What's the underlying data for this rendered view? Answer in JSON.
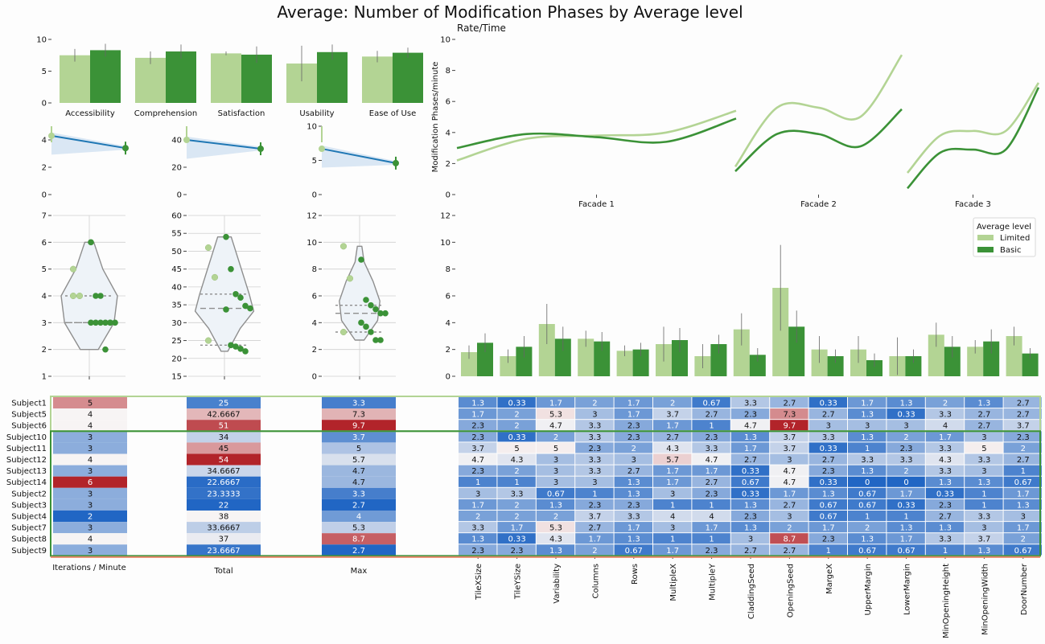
{
  "title": "Average: Number of Modification Phases by Average level",
  "colors": {
    "limited": "#b3d494",
    "basic": "#3b9237"
  },
  "chart_data": [
    {
      "id": "ratings_bar",
      "type": "bar",
      "categories": [
        "Accessibility",
        "Comprehension",
        "Satisfaction",
        "Usability",
        "Ease of Use"
      ],
      "series": [
        {
          "name": "Limited",
          "values": [
            7.5,
            7.1,
            7.8,
            6.2,
            7.3
          ],
          "err": [
            1.0,
            1.0,
            0.3,
            2.8,
            0.9
          ]
        },
        {
          "name": "Basic",
          "values": [
            8.3,
            8.1,
            7.6,
            8.0,
            7.9
          ],
          "err": [
            1.0,
            1.1,
            1.3,
            1.2,
            0.8
          ]
        }
      ],
      "ylim": [
        0,
        10
      ],
      "yticks": [
        "0",
        "5",
        "10"
      ]
    },
    {
      "id": "regression_panels",
      "type": "line",
      "panels": [
        {
          "y": [
            4.3,
            3.4
          ],
          "ylim": [
            0,
            5
          ],
          "yticks": [
            "0",
            "2",
            "4"
          ]
        },
        {
          "y": [
            40.0,
            33.5
          ],
          "ylim": [
            0,
            50
          ],
          "yticks": [
            "0",
            "20",
            "40"
          ]
        },
        {
          "y": [
            6.7,
            4.6
          ],
          "ylim": [
            0,
            10
          ],
          "yticks": [
            "0",
            "5",
            "10"
          ]
        }
      ]
    },
    {
      "id": "violin_panels",
      "type": "scatter",
      "panels": [
        {
          "ylim": [
            1,
            7
          ],
          "yticks": [
            "1",
            "2",
            "3",
            "4",
            "5",
            "6",
            "7"
          ],
          "limited": [
            5,
            4,
            4
          ],
          "basic": [
            6,
            4,
            4,
            3,
            3,
            3,
            3,
            3,
            3,
            2,
            3
          ]
        },
        {
          "ylim": [
            15,
            60
          ],
          "yticks": [
            "15",
            "20",
            "25",
            "30",
            "35",
            "40",
            "45",
            "50",
            "55",
            "60"
          ],
          "limited": [
            51,
            42.7,
            25
          ],
          "basic": [
            54,
            45,
            38,
            37,
            34.7,
            34,
            33.7,
            23.7,
            23.3,
            22.7,
            22
          ]
        },
        {
          "ylim": [
            0,
            12
          ],
          "yticks": [
            "0",
            "2",
            "4",
            "6",
            "8",
            "10",
            "12"
          ],
          "limited": [
            9.7,
            7.3,
            3.3
          ],
          "basic": [
            8.7,
            5.7,
            5.3,
            5,
            4.7,
            4.7,
            4,
            3.7,
            3.3,
            2.7,
            2.7
          ]
        }
      ]
    },
    {
      "id": "rate_time",
      "type": "line",
      "title": "Rate/Time",
      "ylabel": "Modification Phases/minute",
      "categories": [
        "Facade 1",
        "Facade 2",
        "Facade 3"
      ],
      "ylim": [
        0,
        10
      ],
      "yticks": [
        "0",
        "2",
        "4",
        "6",
        "8",
        "10"
      ],
      "series": [
        {
          "name": "Limited",
          "curves": [
            [
              2.2,
              3.6,
              3.8,
              4.0,
              5.4
            ],
            [
              1.8,
              5.6,
              5.6,
              5.0,
              9.0
            ],
            [
              1.4,
              3.8,
              4.1,
              4.1,
              7.2
            ]
          ]
        },
        {
          "name": "Basic",
          "curves": [
            [
              3.0,
              3.9,
              3.7,
              3.4,
              4.9
            ],
            [
              1.5,
              3.9,
              3.9,
              3.1,
              5.5
            ],
            [
              0.4,
              2.7,
              2.9,
              2.9,
              6.9
            ]
          ]
        }
      ]
    },
    {
      "id": "params_bar",
      "type": "bar",
      "categories": [
        "TileXSize",
        "TileYSize",
        "Variability",
        "Columns",
        "Rows",
        "MultipleX",
        "MultipleY",
        "CladdingSeed",
        "OpeningSeed",
        "MargeX",
        "UpperMargin",
        "LowerMargin",
        "MinOpeningHeight",
        "MinOpeningWidth",
        "DoorNumber"
      ],
      "series": [
        {
          "name": "Limited",
          "values": [
            1.8,
            1.5,
            3.9,
            2.8,
            1.9,
            2.4,
            1.5,
            3.5,
            6.6,
            2.0,
            2.0,
            1.5,
            3.1,
            2.2,
            3.0
          ],
          "err": [
            0.5,
            0.5,
            1.5,
            0.6,
            0.4,
            1.3,
            0.9,
            1.2,
            3.2,
            1.0,
            1.0,
            1.4,
            0.9,
            0.5,
            0.7
          ]
        },
        {
          "name": "Basic",
          "values": [
            2.5,
            2.2,
            2.8,
            2.6,
            2.0,
            2.7,
            2.4,
            1.6,
            3.7,
            1.5,
            1.2,
            1.5,
            2.2,
            2.6,
            1.7
          ],
          "err": [
            0.7,
            0.8,
            0.9,
            0.7,
            0.5,
            0.9,
            0.7,
            0.5,
            1.2,
            0.5,
            0.5,
            0.5,
            0.8,
            0.9,
            0.4
          ]
        }
      ],
      "ylim": [
        0,
        12
      ],
      "yticks": [
        "0",
        "2",
        "4",
        "6",
        "8",
        "10",
        "12"
      ],
      "legend": {
        "title": "Average level",
        "placement": "top-right"
      }
    },
    {
      "id": "subjects_table",
      "type": "heatmap",
      "row_labels": [
        "Subject1",
        "Subject5",
        "Subject6",
        "Subject10",
        "Subject11",
        "Subject12",
        "Subject13",
        "Subject14",
        "Subject2",
        "Subject3",
        "Subject4",
        "Subject7",
        "Subject8",
        "Subject9"
      ],
      "left_columns": [
        "Iterations / Minute",
        "Total",
        "Max"
      ],
      "left_values": [
        [
          "5",
          "25",
          "3.3"
        ],
        [
          "4",
          "42.6667",
          "7.3"
        ],
        [
          "4",
          "51",
          "9.7"
        ],
        [
          "3",
          "34",
          "3.7"
        ],
        [
          "3",
          "45",
          "5"
        ],
        [
          "4",
          "54",
          "5.7"
        ],
        [
          "3",
          "34.6667",
          "4.7"
        ],
        [
          "6",
          "22.6667",
          "4.7"
        ],
        [
          "3",
          "23.3333",
          "3.3"
        ],
        [
          "3",
          "22",
          "2.7"
        ],
        [
          "2",
          "38",
          "4"
        ],
        [
          "3",
          "33.6667",
          "5.3"
        ],
        [
          "4",
          "37",
          "8.7"
        ],
        [
          "3",
          "23.6667",
          "2.7"
        ]
      ],
      "param_values": [
        [
          "1.3",
          "0.33",
          "1.7",
          "2",
          "1.7",
          "2",
          "0.67",
          "3.3",
          "2.7",
          "0.33",
          "1.7",
          "1.3",
          "2",
          "1.3",
          "2.7"
        ],
        [
          "1.7",
          "2",
          "5.3",
          "3",
          "1.7",
          "3.7",
          "2.7",
          "2.3",
          "7.3",
          "2.7",
          "1.3",
          "0.33",
          "3.3",
          "2.7",
          "2.7"
        ],
        [
          "2.3",
          "2",
          "4.7",
          "3.3",
          "2.3",
          "1.7",
          "1",
          "4.7",
          "9.7",
          "3",
          "3",
          "3",
          "4",
          "2.7",
          "3.7"
        ],
        [
          "2.3",
          "0.33",
          "2",
          "3.3",
          "2.3",
          "2.7",
          "2.3",
          "1.3",
          "3.7",
          "3.3",
          "1.3",
          "2",
          "1.7",
          "3",
          "2.3"
        ],
        [
          "3.7",
          "5",
          "5",
          "2.3",
          "2",
          "4.3",
          "3.3",
          "1.7",
          "3.7",
          "0.33",
          "1",
          "2.3",
          "3.3",
          "5",
          "2"
        ],
        [
          "4.7",
          "4.3",
          "3",
          "3.3",
          "3",
          "5.7",
          "4.7",
          "2.7",
          "3",
          "2.7",
          "3.3",
          "3.3",
          "4.3",
          "3.3",
          "2.7"
        ],
        [
          "2.3",
          "2",
          "3",
          "3.3",
          "2.7",
          "1.7",
          "1.7",
          "0.33",
          "4.7",
          "2.3",
          "1.3",
          "2",
          "3.3",
          "3",
          "1"
        ],
        [
          "1",
          "1",
          "3",
          "3",
          "1.3",
          "1.7",
          "2.7",
          "0.67",
          "4.7",
          "0.33",
          "0",
          "0",
          "1.3",
          "1.3",
          "0.67"
        ],
        [
          "3",
          "3.3",
          "0.67",
          "1",
          "1.3",
          "3",
          "2.3",
          "0.33",
          "1.7",
          "1.3",
          "0.67",
          "1.7",
          "0.33",
          "1",
          "1.7"
        ],
        [
          "1.7",
          "2",
          "1.3",
          "2.3",
          "2.3",
          "1",
          "1",
          "1.3",
          "2.7",
          "0.67",
          "0.67",
          "0.33",
          "2.3",
          "1",
          "1.3"
        ],
        [
          "2",
          "2",
          "2",
          "3.7",
          "3.3",
          "4",
          "4",
          "2.3",
          "3",
          "0.67",
          "1",
          "1",
          "2.7",
          "3.3",
          "3"
        ],
        [
          "3.3",
          "1.7",
          "5.3",
          "2.7",
          "1.7",
          "3",
          "1.7",
          "1.3",
          "2",
          "1.7",
          "2",
          "1.3",
          "1.3",
          "3",
          "1.7"
        ],
        [
          "1.3",
          "0.33",
          "4.3",
          "1.7",
          "1.3",
          "1",
          "1",
          "3",
          "8.7",
          "2.3",
          "1.3",
          "1.7",
          "3.3",
          "3.7",
          "2"
        ],
        [
          "2.3",
          "2.3",
          "1.3",
          "2",
          "0.67",
          "1.7",
          "2.3",
          "2.7",
          "2.7",
          "1",
          "0.67",
          "0.67",
          "1",
          "1.3",
          "0.67"
        ]
      ],
      "color_scale": {
        "low": "#2166c4",
        "mid": "#f7f4f4",
        "high": "#b2242a"
      }
    }
  ]
}
